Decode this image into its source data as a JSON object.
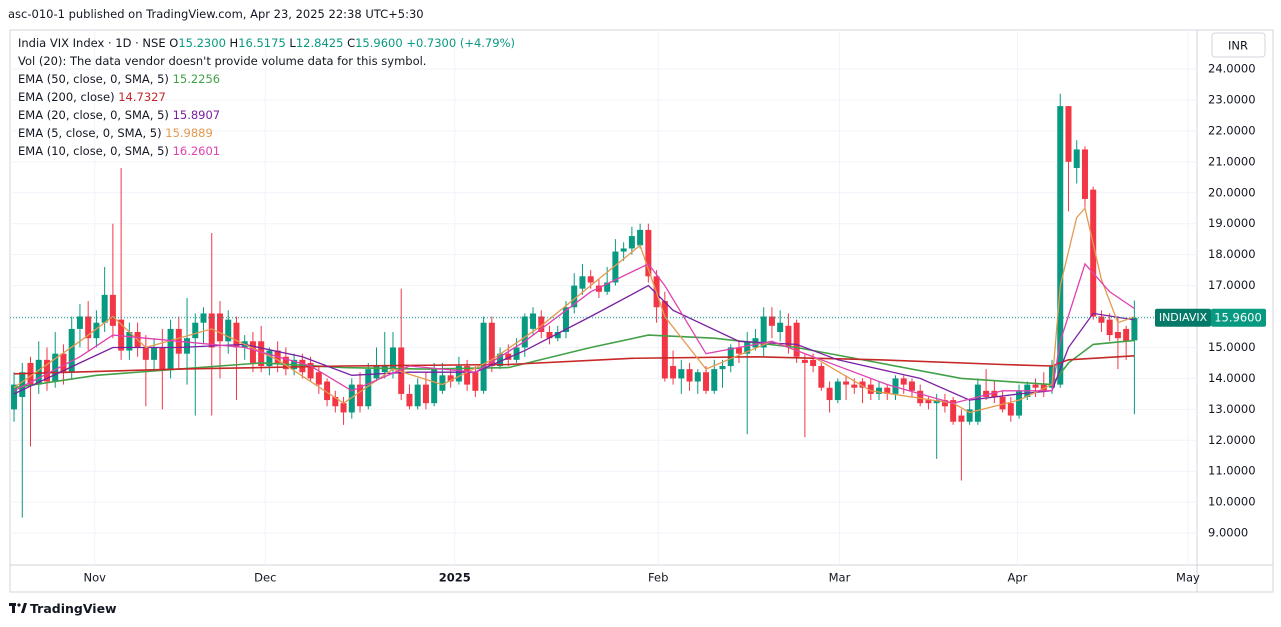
{
  "header": "asc-010-1 published on TradingView.com, Apr 23, 2025 22:38 UTC+5:30",
  "footer": "TradingView",
  "chart_data": {
    "type": "candlestick",
    "title": "India VIX Index · 1D · NSE",
    "ohlc_legend": [
      {
        "key": "O",
        "value": "15.2300"
      },
      {
        "key": "H",
        "value": "16.5175"
      },
      {
        "key": "L",
        "value": "12.8425"
      },
      {
        "key": "C",
        "value": "15.9600"
      }
    ],
    "change": "+0.7300 (+4.79%)",
    "volume_note": "Vol (20): The data vendor doesn't provide volume data for this symbol.",
    "currency": "INR",
    "symbol": "INDIAVIX",
    "last_price_label": "15.9600",
    "up_color": "#089981",
    "down_color": "#f23645",
    "grid": true,
    "ylim": [
      7.97,
      25.26
    ],
    "yticks": [
      {
        "value": 9,
        "label": "9.0000"
      },
      {
        "value": 10,
        "label": "10.0000"
      },
      {
        "value": 11,
        "label": "11.0000"
      },
      {
        "value": 12,
        "label": "12.0000"
      },
      {
        "value": 13,
        "label": "13.0000"
      },
      {
        "value": 14,
        "label": "14.0000"
      },
      {
        "value": 15,
        "label": "15.0000"
      },
      {
        "value": 16,
        "label": "16.0000"
      },
      {
        "value": 17,
        "label": "17.0000"
      },
      {
        "value": 18,
        "label": "18.0000"
      },
      {
        "value": 19,
        "label": "19.0000"
      },
      {
        "value": 20,
        "label": "20.0000"
      },
      {
        "value": 21,
        "label": "21.0000"
      },
      {
        "value": 22,
        "label": "22.0000"
      },
      {
        "value": 23,
        "label": "23.0000"
      },
      {
        "value": 24,
        "label": "24.0000"
      }
    ],
    "xlim": [
      -0.49,
      143.6
    ],
    "xticks": [
      {
        "value": 9.8,
        "label": "Nov"
      },
      {
        "value": 30.5,
        "label": "Dec"
      },
      {
        "value": 53.5,
        "label": "2025"
      },
      {
        "value": 78.2,
        "label": "Feb"
      },
      {
        "value": 100.2,
        "label": "Mar"
      },
      {
        "value": 121.8,
        "label": "Apr"
      },
      {
        "value": 142.5,
        "label": "May"
      }
    ],
    "candles": [
      [
        13.0,
        14.2,
        12.6,
        13.8
      ],
      [
        13.4,
        14.5,
        9.5,
        14.2
      ],
      [
        14.5,
        14.7,
        11.8,
        13.8
      ],
      [
        13.8,
        15.2,
        13.5,
        14.6
      ],
      [
        14.6,
        15.0,
        13.6,
        13.9
      ],
      [
        13.9,
        15.5,
        13.7,
        14.8
      ],
      [
        14.8,
        15.1,
        13.8,
        14.2
      ],
      [
        14.2,
        16.0,
        14.0,
        15.6
      ],
      [
        15.6,
        16.4,
        15.0,
        16.0
      ],
      [
        16.0,
        16.5,
        14.9,
        15.3
      ],
      [
        15.3,
        16.2,
        15.0,
        15.8
      ],
      [
        15.8,
        17.6,
        15.5,
        16.7
      ],
      [
        16.7,
        19.0,
        15.3,
        15.7
      ],
      [
        15.9,
        20.8,
        14.6,
        14.9
      ],
      [
        14.9,
        15.8,
        14.6,
        15.5
      ],
      [
        15.5,
        15.8,
        14.7,
        15.0
      ],
      [
        15.0,
        15.4,
        13.1,
        14.6
      ],
      [
        14.6,
        15.3,
        14.3,
        15.0
      ],
      [
        15.0,
        15.6,
        13.0,
        14.3
      ],
      [
        14.3,
        15.9,
        14.0,
        15.6
      ],
      [
        15.6,
        16.0,
        14.3,
        14.8
      ],
      [
        14.8,
        16.6,
        13.8,
        15.3
      ],
      [
        15.3,
        16.1,
        12.8,
        15.8
      ],
      [
        15.8,
        16.3,
        15.1,
        16.1
      ],
      [
        16.1,
        18.7,
        12.8,
        15.0
      ],
      [
        16.1,
        16.5,
        14.0,
        15.2
      ],
      [
        15.2,
        16.2,
        14.8,
        15.9
      ],
      [
        15.8,
        16.0,
        13.3,
        15.0
      ],
      [
        15.0,
        15.4,
        14.6,
        15.2
      ],
      [
        15.2,
        15.5,
        14.2,
        14.5
      ],
      [
        15.2,
        15.7,
        14.2,
        14.4
      ],
      [
        14.4,
        15.0,
        14.1,
        14.9
      ],
      [
        14.9,
        15.2,
        14.2,
        14.5
      ],
      [
        14.7,
        15.0,
        14.1,
        14.3
      ],
      [
        14.3,
        14.8,
        14.1,
        14.6
      ],
      [
        14.6,
        14.8,
        14.0,
        14.2
      ],
      [
        14.5,
        14.7,
        13.9,
        14.0
      ],
      [
        14.2,
        14.4,
        13.5,
        13.8
      ],
      [
        13.9,
        14.0,
        13.1,
        13.3
      ],
      [
        13.4,
        13.6,
        12.9,
        13.1
      ],
      [
        13.2,
        13.4,
        12.5,
        12.9
      ],
      [
        12.9,
        14.0,
        12.7,
        13.8
      ],
      [
        13.8,
        14.2,
        12.9,
        13.1
      ],
      [
        13.1,
        14.5,
        13.0,
        14.3
      ],
      [
        14.0,
        15.0,
        13.9,
        14.4
      ],
      [
        14.2,
        15.5,
        14.0,
        14.4
      ],
      [
        14.3,
        15.5,
        14.0,
        15.0
      ],
      [
        15.0,
        16.9,
        13.3,
        13.5
      ],
      [
        13.5,
        13.8,
        13.0,
        13.1
      ],
      [
        13.1,
        14.0,
        13.0,
        13.8
      ],
      [
        13.8,
        14.2,
        13.0,
        13.2
      ],
      [
        13.2,
        14.5,
        13.1,
        14.3
      ],
      [
        13.6,
        14.5,
        13.5,
        14.1
      ],
      [
        14.1,
        14.3,
        13.7,
        13.9
      ],
      [
        13.9,
        14.7,
        13.8,
        14.4
      ],
      [
        14.4,
        14.6,
        13.6,
        13.8
      ],
      [
        14.2,
        14.4,
        13.4,
        13.6
      ],
      [
        13.6,
        16.0,
        13.5,
        15.8
      ],
      [
        15.8,
        16.0,
        14.2,
        14.4
      ],
      [
        14.4,
        15.0,
        14.3,
        14.8
      ],
      [
        14.8,
        15.1,
        14.4,
        14.6
      ],
      [
        14.6,
        15.3,
        14.5,
        15.0
      ],
      [
        15.0,
        16.1,
        14.7,
        16.0
      ],
      [
        15.6,
        16.3,
        15.4,
        16.1
      ],
      [
        16.0,
        16.2,
        15.3,
        15.5
      ],
      [
        15.5,
        15.7,
        15.1,
        15.3
      ],
      [
        15.3,
        15.7,
        15.2,
        15.5
      ],
      [
        15.5,
        16.5,
        15.3,
        16.3
      ],
      [
        16.3,
        17.4,
        16.1,
        17.0
      ],
      [
        16.9,
        17.7,
        16.7,
        17.3
      ],
      [
        17.3,
        17.5,
        16.9,
        17.1
      ],
      [
        17.0,
        17.2,
        16.6,
        16.8
      ],
      [
        16.8,
        17.6,
        16.7,
        17.1
      ],
      [
        17.1,
        18.5,
        17.0,
        18.1
      ],
      [
        18.1,
        18.4,
        17.8,
        18.2
      ],
      [
        18.2,
        18.9,
        18.0,
        18.6
      ],
      [
        18.3,
        19.0,
        18.2,
        18.8
      ],
      [
        18.8,
        19.0,
        17.1,
        17.3
      ],
      [
        17.3,
        17.5,
        15.8,
        16.3
      ],
      [
        16.5,
        16.8,
        13.9,
        14.0
      ],
      [
        14.4,
        14.9,
        13.8,
        14.0
      ],
      [
        14.0,
        14.6,
        13.5,
        14.3
      ],
      [
        14.3,
        14.5,
        13.6,
        13.9
      ],
      [
        13.9,
        14.3,
        13.5,
        14.2
      ],
      [
        14.2,
        14.4,
        13.5,
        13.6
      ],
      [
        13.6,
        14.6,
        13.5,
        14.3
      ],
      [
        14.3,
        14.6,
        13.7,
        14.4
      ],
      [
        14.4,
        15.1,
        14.2,
        15.0
      ],
      [
        15.0,
        15.2,
        14.5,
        14.8
      ],
      [
        14.8,
        15.5,
        12.2,
        15.2
      ],
      [
        15.0,
        15.6,
        14.9,
        15.3
      ],
      [
        15.0,
        16.3,
        14.7,
        16.0
      ],
      [
        16.0,
        16.3,
        15.3,
        15.7
      ],
      [
        15.5,
        16.2,
        15.2,
        15.8
      ],
      [
        15.7,
        16.1,
        14.8,
        15.0
      ],
      [
        15.8,
        15.9,
        14.5,
        14.7
      ],
      [
        14.6,
        14.8,
        12.1,
        14.5
      ],
      [
        14.6,
        14.8,
        14.2,
        14.4
      ],
      [
        14.4,
        14.5,
        13.6,
        13.7
      ],
      [
        13.7,
        13.9,
        12.9,
        13.3
      ],
      [
        13.3,
        14.0,
        13.2,
        13.9
      ],
      [
        13.9,
        14.1,
        13.3,
        13.8
      ],
      [
        13.8,
        14.0,
        13.5,
        13.7
      ],
      [
        13.9,
        14.0,
        13.2,
        13.7
      ],
      [
        13.8,
        14.0,
        13.3,
        13.5
      ],
      [
        13.5,
        13.9,
        13.3,
        13.7
      ],
      [
        13.7,
        13.8,
        13.3,
        13.5
      ],
      [
        13.5,
        14.1,
        13.3,
        14.0
      ],
      [
        14.0,
        14.1,
        13.5,
        13.8
      ],
      [
        13.9,
        14.0,
        13.4,
        13.6
      ],
      [
        13.6,
        13.8,
        13.1,
        13.2
      ],
      [
        13.3,
        13.4,
        13.0,
        13.2
      ],
      [
        13.2,
        13.5,
        11.4,
        13.3
      ],
      [
        13.3,
        13.5,
        12.9,
        13.1
      ],
      [
        13.3,
        13.4,
        12.5,
        12.6
      ],
      [
        12.8,
        13.0,
        10.7,
        12.6
      ],
      [
        12.6,
        13.3,
        12.5,
        13.0
      ],
      [
        12.6,
        14.0,
        12.5,
        13.8
      ],
      [
        13.6,
        14.3,
        13.3,
        13.4
      ],
      [
        13.6,
        13.9,
        13.2,
        13.4
      ],
      [
        13.4,
        13.6,
        12.9,
        13.0
      ],
      [
        13.2,
        13.4,
        12.6,
        12.8
      ],
      [
        12.8,
        13.8,
        12.7,
        13.6
      ],
      [
        13.4,
        13.9,
        13.3,
        13.8
      ],
      [
        13.8,
        14.0,
        13.4,
        13.7
      ],
      [
        13.8,
        14.2,
        13.4,
        13.6
      ],
      [
        13.7,
        14.6,
        13.5,
        14.4
      ],
      [
        13.8,
        23.2,
        13.7,
        22.8
      ],
      [
        22.8,
        22.8,
        19.4,
        21.0
      ],
      [
        20.8,
        21.7,
        20.3,
        21.4
      ],
      [
        21.4,
        21.5,
        19.5,
        19.8
      ],
      [
        20.1,
        20.2,
        15.9,
        16.0
      ],
      [
        16.0,
        16.2,
        15.5,
        15.8
      ],
      [
        15.9,
        16.1,
        15.2,
        15.4
      ],
      [
        15.5,
        16.0,
        14.3,
        15.3
      ],
      [
        15.6,
        15.7,
        14.6,
        15.2
      ],
      [
        15.23,
        16.5175,
        12.8425,
        15.96
      ]
    ],
    "series": [
      {
        "name": "EMA (50, close, 0, SMA, 5)",
        "color": "#43a047",
        "last_label": "15.2256",
        "x": [
          0,
          10,
          20,
          30,
          40,
          50,
          60,
          70,
          77,
          85,
          95,
          105,
          115,
          126,
          128,
          131,
          136
        ],
        "values": [
          13.7,
          14.1,
          14.3,
          14.5,
          14.35,
          14.3,
          14.35,
          15.0,
          15.4,
          15.3,
          15.0,
          14.5,
          14.0,
          13.8,
          14.5,
          15.1,
          15.23
        ]
      },
      {
        "name": "EMA (200, close)",
        "color": "#c62828",
        "last_label": "14.7327",
        "x": [
          0,
          20,
          40,
          60,
          75,
          90,
          105,
          120,
          126,
          128,
          136
        ],
        "values": [
          14.15,
          14.3,
          14.4,
          14.45,
          14.65,
          14.7,
          14.6,
          14.45,
          14.4,
          14.6,
          14.73
        ]
      },
      {
        "name": "EMA (20, close, 0, SMA, 5)",
        "color": "#7b1fa2",
        "last_label": "15.8907",
        "x": [
          0,
          8,
          12,
          20,
          28,
          35,
          41,
          48,
          56,
          62,
          70,
          77,
          80,
          88,
          95,
          100,
          110,
          116,
          122,
          126,
          128,
          131,
          136
        ],
        "values": [
          13.5,
          14.5,
          15.0,
          15.0,
          15.1,
          14.7,
          14.1,
          14.2,
          14.2,
          14.9,
          16.0,
          17.0,
          16.2,
          15.2,
          15.1,
          14.6,
          14.0,
          13.3,
          13.5,
          13.6,
          15.0,
          16.1,
          15.89
        ]
      },
      {
        "name": "EMA (5, close, 0, SMA, 5)",
        "color": "#e39a4f",
        "last_label": "15.9889",
        "x": [
          0,
          8,
          12,
          16,
          24,
          32,
          40,
          46,
          52,
          58,
          64,
          70,
          76,
          79,
          84,
          92,
          97,
          104,
          114,
          116,
          122,
          126,
          127,
          129,
          130,
          132,
          134,
          136
        ],
        "values": [
          13.7,
          15.2,
          16.0,
          15.0,
          15.6,
          14.6,
          13.2,
          14.3,
          13.8,
          14.6,
          15.7,
          17.0,
          18.3,
          16.0,
          14.3,
          15.2,
          14.7,
          13.6,
          13.2,
          12.9,
          13.3,
          13.8,
          17.0,
          19.2,
          19.5,
          17.2,
          15.8,
          15.99
        ]
      },
      {
        "name": "EMA (10, close, 0, SMA, 5)",
        "color": "#e040b0",
        "last_label": "16.2601",
        "x": [
          0,
          8,
          12,
          20,
          28,
          36,
          41,
          48,
          56,
          62,
          70,
          77,
          79,
          84,
          92,
          98,
          106,
          114,
          120,
          126,
          127,
          130,
          133,
          136
        ],
        "values": [
          13.6,
          14.7,
          15.4,
          15.2,
          15.0,
          14.4,
          13.6,
          14.4,
          14.2,
          15.2,
          16.8,
          17.7,
          17.0,
          14.8,
          15.2,
          14.6,
          13.8,
          13.2,
          13.6,
          13.6,
          15.2,
          17.7,
          16.8,
          16.26
        ]
      }
    ]
  }
}
